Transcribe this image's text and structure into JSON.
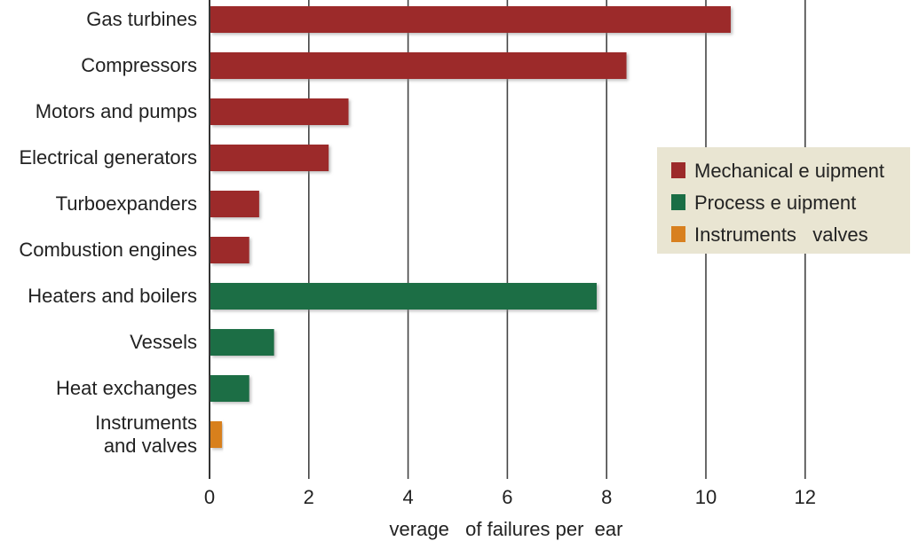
{
  "chart_data": {
    "type": "bar",
    "orientation": "horizontal",
    "categories": [
      "Gas turbines",
      "Compressors",
      "Motors and pumps",
      "Electrical generators",
      "Turboexpanders",
      "Combustion engines",
      "Heaters and boilers",
      "Vessels",
      "Heat exchanges",
      "Instruments\nand valves"
    ],
    "values": [
      10.5,
      8.4,
      2.8,
      2.4,
      1.0,
      0.8,
      7.8,
      1.3,
      0.8,
      0.25
    ],
    "groups": [
      "Mechanical e uipment",
      "Mechanical e uipment",
      "Mechanical e uipment",
      "Mechanical e uipment",
      "Mechanical e uipment",
      "Mechanical e uipment",
      "Process e uipment",
      "Process e uipment",
      "Process e uipment",
      "Instruments   valves"
    ],
    "legend": [
      {
        "name": "Mechanical e uipment",
        "color": "#9c2a2a"
      },
      {
        "name": "Process e uipment",
        "color": "#1a6e45"
      },
      {
        "name": "Instruments   valves",
        "color": "#d8801f"
      }
    ],
    "xlabel": "verage   of failures per  ear",
    "xlim": [
      0,
      12
    ],
    "xticks": [
      "0",
      "2",
      "4",
      "6",
      "8",
      "10",
      "12"
    ],
    "grid": true,
    "legend_position": "right"
  }
}
